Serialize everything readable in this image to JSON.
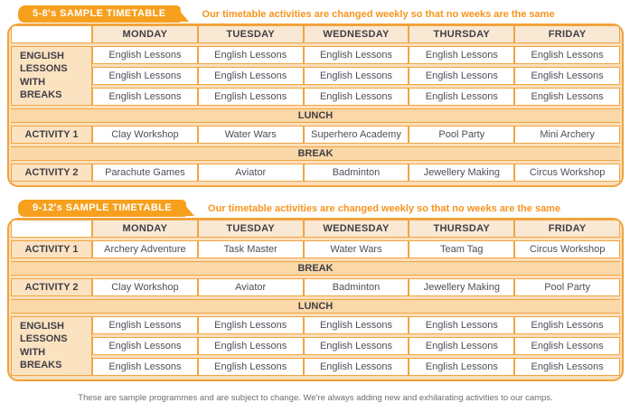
{
  "colors": {
    "badge_orange": "#F6A01E",
    "tagline_orange": "#F7941D",
    "border_orange": "#F0A541",
    "table_backdrop": "#FBDFBC",
    "day_header_bg": "#F9E8D3",
    "label_bg": "#FBE3C1",
    "band_bg": "#FAD8A7",
    "dark_text": "#403E46",
    "cell_text": "#4E4E58",
    "footer_text": "#6E6E76"
  },
  "tables": [
    {
      "badge": "5-8's SAMPLE TIMETABLE",
      "tagline": "Our timetable activities are changed weekly so that no weeks are the same",
      "days": [
        "MONDAY",
        "TUESDAY",
        "WEDNESDAY",
        "THURSDAY",
        "FRIDAY"
      ],
      "rows": [
        {
          "type": "group",
          "label": "ENGLISH LESSONS WITH BREAKS",
          "lines": [
            [
              "English Lessons",
              "English Lessons",
              "English Lessons",
              "English Lessons",
              "English Lessons"
            ],
            [
              "English Lessons",
              "English Lessons",
              "English Lessons",
              "English Lessons",
              "English Lessons"
            ],
            [
              "English Lessons",
              "English Lessons",
              "English Lessons",
              "English Lessons",
              "English Lessons"
            ]
          ]
        },
        {
          "type": "band",
          "label": "LUNCH"
        },
        {
          "type": "row",
          "label": "ACTIVITY 1",
          "cells": [
            "Clay Workshop",
            "Water Wars",
            "Superhero Academy",
            "Pool Party",
            "Mini Archery"
          ]
        },
        {
          "type": "band",
          "label": "BREAK"
        },
        {
          "type": "row",
          "label": "ACTIVITY 2",
          "cells": [
            "Parachute Games",
            "Aviator",
            "Badminton",
            "Jewellery Making",
            "Circus Workshop"
          ]
        }
      ]
    },
    {
      "badge": "9-12's SAMPLE TIMETABLE",
      "tagline": "Our timetable activities are changed weekly so that no weeks are the same",
      "days": [
        "MONDAY",
        "TUESDAY",
        "WEDNESDAY",
        "THURSDAY",
        "FRIDAY"
      ],
      "rows": [
        {
          "type": "row",
          "label": "ACTIVITY 1",
          "cells": [
            "Archery Adventure",
            "Task Master",
            "Water Wars",
            "Team Tag",
            "Circus Workshop"
          ]
        },
        {
          "type": "band",
          "label": "BREAK"
        },
        {
          "type": "row",
          "label": "ACTIVITY 2",
          "cells": [
            "Clay Workshop",
            "Aviator",
            "Badminton",
            "Jewellery Making",
            "Pool Party"
          ]
        },
        {
          "type": "band",
          "label": "LUNCH"
        },
        {
          "type": "group",
          "label": "ENGLISH LESSONS WITH BREAKS",
          "lines": [
            [
              "English Lessons",
              "English Lessons",
              "English Lessons",
              "English Lessons",
              "English Lessons"
            ],
            [
              "English Lessons",
              "English Lessons",
              "English Lessons",
              "English Lessons",
              "English Lessons"
            ],
            [
              "English Lessons",
              "English Lessons",
              "English Lessons",
              "English Lessons",
              "English Lessons"
            ]
          ]
        }
      ]
    }
  ],
  "footer": {
    "note": "These are sample programmes and are subject to change. We're always adding new and exhilarating activities to our camps."
  }
}
